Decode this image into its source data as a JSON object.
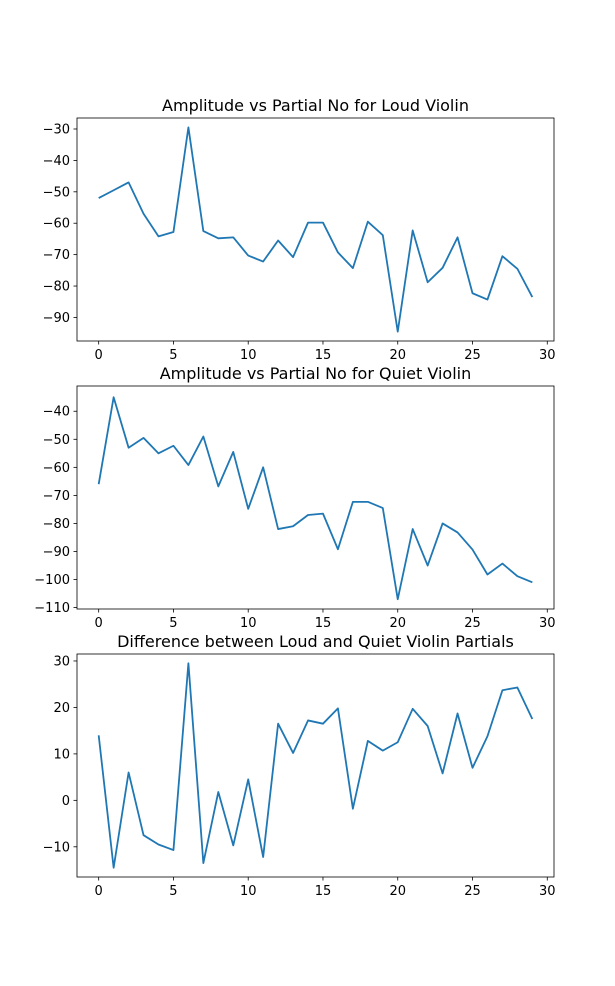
{
  "style": {
    "line_color": "#1f77b4",
    "axis_color": "#000000",
    "background": "#ffffff"
  },
  "chart_data": [
    {
      "type": "line",
      "title": "Amplitude vs Partial No for Loud Violin",
      "xlabel": "",
      "ylabel": "",
      "xlim": [
        -1.45,
        30.45
      ],
      "ylim": [
        -97.5,
        -26.5
      ],
      "xticks": [
        0,
        5,
        10,
        15,
        20,
        25,
        30
      ],
      "yticks": [
        -90,
        -80,
        -70,
        -60,
        -50,
        -40,
        -30
      ],
      "grid": false,
      "x": [
        0,
        1,
        2,
        3,
        4,
        5,
        6,
        7,
        8,
        9,
        10,
        11,
        12,
        13,
        14,
        15,
        16,
        17,
        18,
        19,
        20,
        21,
        22,
        23,
        24,
        25,
        26,
        27,
        28,
        29
      ],
      "series": [
        {
          "values": [
            -52,
            -49.5,
            -47,
            -57,
            -64.2,
            -62.8,
            -29.5,
            -62.5,
            -64.8,
            -64.5,
            -70.3,
            -72.2,
            -65.5,
            -70.8,
            -59.8,
            -59.8,
            -69.3,
            -74.3,
            -59.5,
            -63.8,
            -94.5,
            -62.3,
            -78.8,
            -74.2,
            -64.5,
            -82.3,
            -84.3,
            -70.5,
            -74.5,
            -83.5
          ]
        }
      ]
    },
    {
      "type": "line",
      "title": "Amplitude vs Partial No for Quiet Violin",
      "xlabel": "",
      "ylabel": "",
      "xlim": [
        -1.45,
        30.45
      ],
      "ylim": [
        -110.5,
        -31
      ],
      "xticks": [
        0,
        5,
        10,
        15,
        20,
        25,
        30
      ],
      "yticks": [
        -110,
        -100,
        -90,
        -80,
        -70,
        -60,
        -50,
        -40
      ],
      "grid": false,
      "x": [
        0,
        1,
        2,
        3,
        4,
        5,
        6,
        7,
        8,
        9,
        10,
        11,
        12,
        13,
        14,
        15,
        16,
        17,
        18,
        19,
        20,
        21,
        22,
        23,
        24,
        25,
        26,
        27,
        28,
        29
      ],
      "series": [
        {
          "values": [
            -66,
            -35,
            -53,
            -49.5,
            -55,
            -52.3,
            -59.2,
            -49,
            -66.8,
            -54.5,
            -74.8,
            -60,
            -82,
            -81,
            -77,
            -76.5,
            -89.2,
            -72.3,
            -72.3,
            -74.5,
            -107,
            -82,
            -95,
            -80,
            -83.2,
            -89.3,
            -98.2,
            -94.3,
            -98.8,
            -101
          ]
        }
      ]
    },
    {
      "type": "line",
      "title": "Difference between Loud and Quiet Violin Partials",
      "xlabel": "",
      "ylabel": "",
      "xlim": [
        -1.45,
        30.45
      ],
      "ylim": [
        -16.5,
        31.5
      ],
      "xticks": [
        0,
        5,
        10,
        15,
        20,
        25,
        30
      ],
      "yticks": [
        -10,
        0,
        10,
        20,
        30
      ],
      "grid": false,
      "x": [
        0,
        1,
        2,
        3,
        4,
        5,
        6,
        7,
        8,
        9,
        10,
        11,
        12,
        13,
        14,
        15,
        16,
        17,
        18,
        19,
        20,
        21,
        22,
        23,
        24,
        25,
        26,
        27,
        28,
        29
      ],
      "series": [
        {
          "values": [
            14,
            -14.5,
            6,
            -7.5,
            -9.5,
            -10.7,
            29.5,
            -13.5,
            1.8,
            -9.7,
            4.5,
            -12.2,
            16.5,
            10.2,
            17.2,
            16.5,
            19.8,
            -1.8,
            12.8,
            10.7,
            12.5,
            19.7,
            16,
            5.8,
            18.7,
            7,
            13.8,
            23.7,
            24.3,
            17.5
          ]
        }
      ]
    }
  ]
}
